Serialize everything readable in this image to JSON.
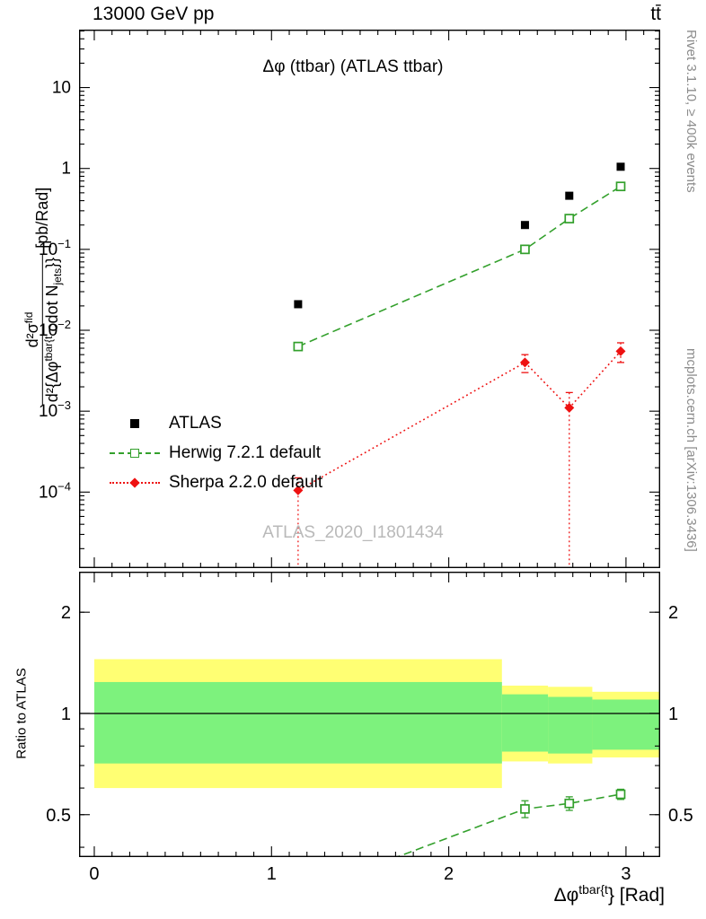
{
  "header": {
    "left": "13000 GeV pp",
    "right": "tt̄"
  },
  "panel_title": "Δφ (ttbar) (ATLAS ttbar)",
  "watermark": "ATLAS_2020_I1801434",
  "side_notes": {
    "top": "Rivet 3.1.10, ≥ 400k events",
    "bottom": "mcplots.cern.ch [arXiv:1306.3436]"
  },
  "ylabel_top": {
    "num_main": "d²σ",
    "num_sup": "fid",
    "den_main": "d²{Δφ",
    "den_sup": "tbar{t",
    "den_mid": " cdot N",
    "den_sub": "jets",
    "den_end": "}}",
    "units": "[pb/Rad]"
  },
  "ylabel_ratio": "Ratio to ATLAS",
  "xlabel": {
    "base": "Δφ",
    "sup": "tbar{t",
    "rest": "} [Rad]"
  },
  "legend": {
    "items": [
      {
        "label": "ATLAS",
        "marker": "filled-square",
        "color": "#000000"
      },
      {
        "label": "Herwig 7.2.1 default",
        "marker": "open-square",
        "line": "dashed",
        "color": "#33a02c"
      },
      {
        "label": "Sherpa 2.2.0 default",
        "marker": "filled-diamond",
        "line": "dotted",
        "color": "#ee1111"
      }
    ]
  },
  "chart_data": [
    {
      "type": "scatter",
      "title": "Δφ (ttbar) (ATLAS ttbar)",
      "xlabel": "Δφ^tbar{t} [Rad]",
      "ylabel": "d²σ^fid / d²{Δφ^tbar{t cdot N_jets}} [pb/Rad]",
      "yscale": "log",
      "xlim": [
        -0.086,
        3.193
      ],
      "ylim": [
        1.15e-05,
        52
      ],
      "xticks": [
        0,
        1,
        2,
        3
      ],
      "legend_position": "middle-left",
      "grid": false,
      "series": [
        {
          "name": "ATLAS",
          "marker": "square",
          "color": "#000000",
          "x": [
            1.15,
            2.43,
            2.68,
            2.97
          ],
          "y": [
            0.021,
            0.2,
            0.46,
            1.05
          ]
        },
        {
          "name": "Herwig 7.2.1 default",
          "marker": "open-square",
          "line": "dashed",
          "color": "#33a02c",
          "x": [
            1.15,
            2.43,
            2.68,
            2.97
          ],
          "y": [
            0.0063,
            0.1,
            0.24,
            0.6
          ]
        },
        {
          "name": "Sherpa 2.2.0 default",
          "marker": "diamond",
          "line": "dotted",
          "color": "#ee1111",
          "x": [
            1.15,
            2.43,
            2.68,
            2.97
          ],
          "y": [
            0.000105,
            0.004,
            0.0011,
            0.0055
          ],
          "ylo": [
            8e-06,
            0.003,
            8e-06,
            0.004
          ],
          "yhi": [
            0.00015,
            0.005,
            0.0017,
            0.007
          ]
        }
      ]
    },
    {
      "type": "ratio",
      "ylabel": "Ratio to ATLAS",
      "yscale": "log",
      "xlim": [
        -0.086,
        3.193
      ],
      "ylim": [
        0.374,
        2.64
      ],
      "yticks": [
        0.5,
        1,
        2
      ],
      "reference_line": 1,
      "band_colors": {
        "yellow": "#ffff73",
        "green": "#7df27d"
      },
      "bands": [
        {
          "x0": 0.0,
          "x1": 2.3,
          "yellow": [
            0.6,
            1.45
          ],
          "green": [
            0.71,
            1.24
          ]
        },
        {
          "x0": 2.3,
          "x1": 2.56,
          "yellow": [
            0.72,
            1.21
          ],
          "green": [
            0.77,
            1.14
          ]
        },
        {
          "x0": 2.56,
          "x1": 2.81,
          "yellow": [
            0.71,
            1.2
          ],
          "green": [
            0.76,
            1.12
          ]
        },
        {
          "x0": 2.81,
          "x1": 3.193,
          "yellow": [
            0.74,
            1.16
          ],
          "green": [
            0.78,
            1.1
          ]
        }
      ],
      "series": [
        {
          "name": "Herwig 7.2.1 default",
          "marker": "open-square",
          "line": "dashed",
          "color": "#33a02c",
          "x": [
            1.15,
            2.43,
            2.68,
            2.97
          ],
          "y": [
            0.29,
            0.52,
            0.54,
            0.575
          ],
          "ylo": [
            0.29,
            0.49,
            0.515,
            0.555
          ],
          "yhi": [
            0.29,
            0.55,
            0.565,
            0.595
          ]
        }
      ]
    }
  ]
}
